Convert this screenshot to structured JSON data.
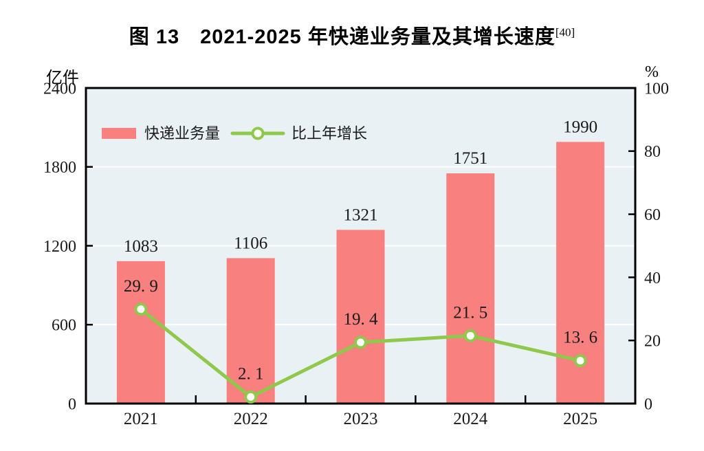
{
  "title": {
    "text": "图 13　2021-2025 年快递业务量及其增长速度",
    "superscript": "[40]"
  },
  "axes": {
    "left_unit": "亿件",
    "right_unit": "%"
  },
  "legend": [
    {
      "label": "快递业务量",
      "type": "bar"
    },
    {
      "label": "比上年增长",
      "type": "line"
    }
  ],
  "colors": {
    "bar": "#F8807E",
    "line": "#8FC94B",
    "marker_fill": "#FFFFFF",
    "plot_bg": "#E9F1F5",
    "grid": "#FFFFFF",
    "axis": "#000000"
  },
  "chart_data": {
    "type": "bar+line",
    "title": "图 13 2021-2025 年快递业务量及其增长速度[40]",
    "categories": [
      "2021",
      "2022",
      "2023",
      "2024",
      "2025"
    ],
    "series": [
      {
        "name": "快递业务量",
        "type": "bar",
        "axis": "left",
        "values": [
          1083,
          1106,
          1321,
          1751,
          1990
        ]
      },
      {
        "name": "比上年增长",
        "type": "line",
        "axis": "right",
        "values": [
          29.9,
          2.1,
          19.4,
          21.5,
          13.6
        ]
      }
    ],
    "left_axis": {
      "label": "亿件",
      "min": 0,
      "max": 2400,
      "ticks": [
        0,
        600,
        1200,
        1800,
        2400
      ]
    },
    "right_axis": {
      "label": "%",
      "min": 0,
      "max": 100,
      "ticks": [
        0,
        20,
        40,
        60,
        80,
        100
      ]
    },
    "grid": "horizontal-left-ticks-only",
    "legend_position": "inside-top-left"
  }
}
